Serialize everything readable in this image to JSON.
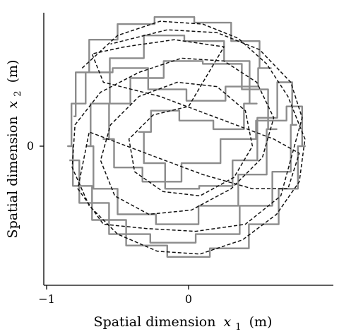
{
  "chart_data": {
    "type": "line",
    "title": "",
    "xlabel": "Spatial dimension",
    "xlabel_var": "x",
    "xlabel_sub": "1",
    "xlabel_unit": "(m)",
    "ylabel": "Spatial dimension",
    "ylabel_var": "x",
    "ylabel_sub": "2",
    "ylabel_unit": "(m)",
    "x_ticks": [
      {
        "value": -1,
        "label": "−1"
      },
      {
        "value": 0,
        "label": "0"
      }
    ],
    "y_ticks": [
      {
        "value": 0,
        "label": "0"
      }
    ],
    "xlim": [
      -1.02,
      1.02
    ],
    "ylim": [
      -0.98,
      0.98
    ],
    "grid": false,
    "legend": "none",
    "series": [
      {
        "style": "solid-staircase",
        "color": "#8c8c8c",
        "points": [
          [
            -0.81,
            0.21
          ],
          [
            -0.78,
            0.52
          ],
          [
            -0.62,
            0.75
          ],
          [
            -0.38,
            0.86
          ],
          [
            -0.1,
            0.91
          ],
          [
            0.18,
            0.87
          ],
          [
            0.42,
            0.74
          ],
          [
            0.58,
            0.55
          ],
          [
            0.4,
            0.42
          ],
          [
            0.12,
            0.32
          ],
          [
            -0.15,
            0.4
          ],
          [
            -0.42,
            0.55
          ],
          [
            -0.65,
            0.52
          ],
          [
            -0.8,
            0.3
          ],
          [
            -0.85,
            0.0
          ],
          [
            -0.78,
            -0.28
          ],
          [
            -0.58,
            -0.52
          ],
          [
            -0.3,
            -0.7
          ],
          [
            0.0,
            -0.78
          ],
          [
            0.3,
            -0.72
          ],
          [
            0.55,
            -0.55
          ],
          [
            0.72,
            -0.3
          ],
          [
            0.82,
            0.0
          ],
          [
            0.78,
            0.28
          ],
          [
            0.6,
            0.18
          ],
          [
            0.35,
            0.05
          ],
          [
            0.1,
            -0.12
          ],
          [
            -0.2,
            -0.25
          ],
          [
            -0.45,
            -0.15
          ],
          [
            -0.6,
            0.05
          ],
          [
            -0.52,
            0.3
          ],
          [
            -0.3,
            0.48
          ],
          [
            -0.05,
            0.6
          ],
          [
            0.25,
            0.58
          ],
          [
            0.5,
            0.4
          ],
          [
            0.62,
            0.12
          ],
          [
            0.48,
            -0.2
          ],
          [
            0.22,
            -0.42
          ],
          [
            -0.08,
            -0.55
          ],
          [
            -0.38,
            -0.48
          ],
          [
            -0.62,
            -0.3
          ],
          [
            -0.72,
            0.0
          ],
          [
            -0.66,
            0.3
          ],
          [
            -0.45,
            0.62
          ],
          [
            -0.18,
            0.78
          ],
          [
            0.12,
            0.74
          ],
          [
            0.38,
            0.6
          ],
          [
            0.48,
            0.3
          ],
          [
            0.3,
            0.12
          ],
          [
            0.05,
            0.18
          ],
          [
            -0.18,
            0.25
          ],
          [
            -0.35,
            0.1
          ],
          [
            -0.28,
            -0.12
          ],
          [
            -0.05,
            -0.3
          ],
          [
            0.2,
            -0.28
          ],
          [
            0.42,
            -0.1
          ],
          [
            0.55,
            0.2
          ],
          [
            0.7,
            0.45
          ],
          [
            0.76,
            0.15
          ],
          [
            0.68,
            -0.18
          ],
          [
            0.5,
            -0.42
          ],
          [
            0.22,
            -0.62
          ],
          [
            -0.12,
            -0.68
          ],
          [
            -0.42,
            -0.62
          ],
          [
            -0.7,
            -0.4
          ],
          [
            -0.84,
            -0.1
          ]
        ]
      },
      {
        "style": "dashed",
        "color": "#111111",
        "points": [
          [
            -0.75,
            0.55
          ],
          [
            -0.5,
            0.78
          ],
          [
            -0.2,
            0.88
          ],
          [
            0.1,
            0.86
          ],
          [
            0.35,
            0.76
          ],
          [
            0.55,
            0.58
          ],
          [
            0.7,
            0.35
          ],
          [
            0.82,
            0.05
          ],
          [
            0.78,
            -0.25
          ],
          [
            0.62,
            -0.48
          ],
          [
            0.38,
            -0.66
          ],
          [
            0.08,
            -0.76
          ],
          [
            -0.22,
            -0.74
          ],
          [
            -0.5,
            -0.62
          ],
          [
            -0.7,
            -0.42
          ],
          [
            -0.82,
            -0.15
          ],
          [
            -0.8,
            0.15
          ],
          [
            -0.62,
            0.38
          ],
          [
            -0.35,
            0.52
          ],
          [
            -0.05,
            0.62
          ],
          [
            0.25,
            0.6
          ],
          [
            0.48,
            0.45
          ],
          [
            0.6,
            0.2
          ],
          [
            0.52,
            -0.08
          ],
          [
            0.3,
            -0.3
          ],
          [
            0.02,
            -0.45
          ],
          [
            -0.28,
            -0.48
          ],
          [
            -0.52,
            -0.35
          ],
          [
            -0.62,
            -0.1
          ],
          [
            -0.55,
            0.15
          ],
          [
            -0.35,
            0.35
          ],
          [
            -0.08,
            0.45
          ],
          [
            0.2,
            0.42
          ],
          [
            0.4,
            0.25
          ],
          [
            0.45,
            0.0
          ],
          [
            0.32,
            -0.22
          ],
          [
            0.08,
            -0.35
          ],
          [
            -0.18,
            -0.32
          ],
          [
            -0.38,
            -0.18
          ],
          [
            -0.42,
            0.05
          ],
          [
            -0.25,
            0.22
          ],
          [
            0.0,
            0.28
          ],
          [
            0.25,
            0.7
          ],
          [
            -0.1,
            0.75
          ],
          [
            -0.45,
            0.7
          ],
          [
            -0.68,
            0.65
          ],
          [
            -0.6,
            0.45
          ],
          [
            -0.2,
            0.35
          ],
          [
            0.2,
            0.2
          ],
          [
            0.6,
            0.05
          ],
          [
            0.78,
            -0.05
          ],
          [
            0.7,
            -0.3
          ],
          [
            0.45,
            -0.3
          ],
          [
            0.1,
            -0.2
          ],
          [
            -0.3,
            -0.05
          ],
          [
            -0.7,
            0.1
          ],
          [
            -0.78,
            -0.3
          ],
          [
            -0.6,
            -0.55
          ],
          [
            -0.3,
            -0.58
          ],
          [
            0.05,
            -0.6
          ],
          [
            0.4,
            -0.55
          ],
          [
            0.65,
            -0.35
          ],
          [
            0.8,
            0.2
          ],
          [
            0.72,
            0.45
          ],
          [
            0.5,
            0.68
          ],
          [
            0.2,
            0.8
          ],
          [
            -0.15,
            0.82
          ],
          [
            -0.55,
            0.72
          ]
        ]
      }
    ]
  }
}
